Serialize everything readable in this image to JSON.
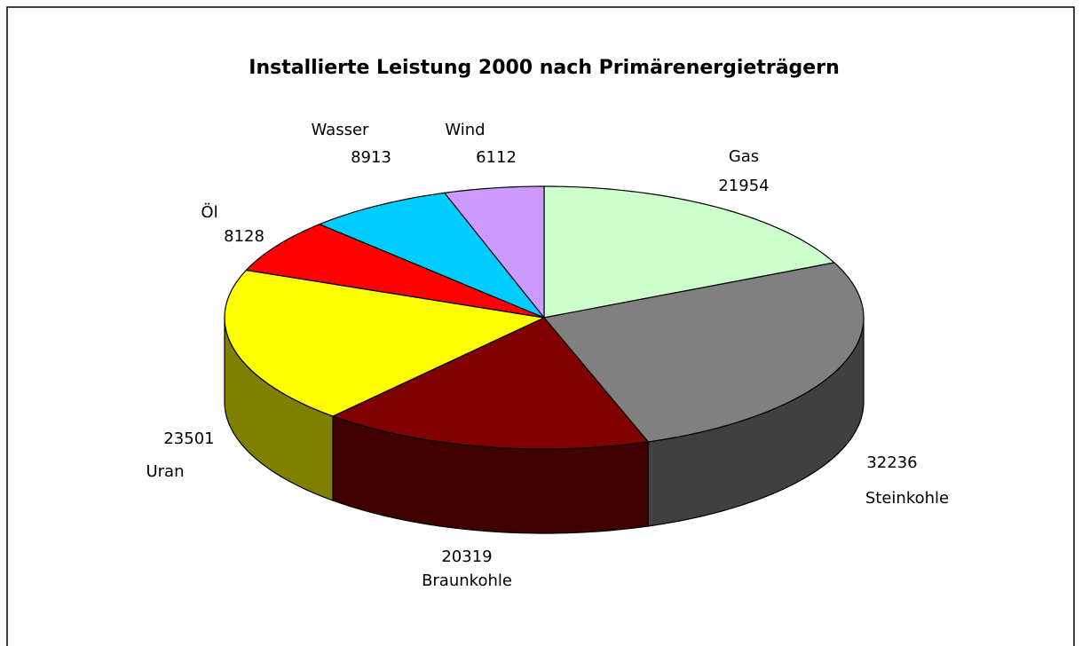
{
  "chart_data": {
    "type": "pie",
    "title": "Installierte Leistung 2000 nach Primärenergieträgern",
    "categories": [
      "Gas",
      "Steinkohle",
      "Braunkohle",
      "Uran",
      "Öl",
      "Wasser",
      "Wind"
    ],
    "values": [
      21954,
      32236,
      20319,
      23501,
      8128,
      8913,
      6112
    ],
    "colors": [
      "#ccffcc",
      "#808080",
      "#800000",
      "#ffff00",
      "#ff0000",
      "#00ccff",
      "#cc99ff"
    ]
  }
}
